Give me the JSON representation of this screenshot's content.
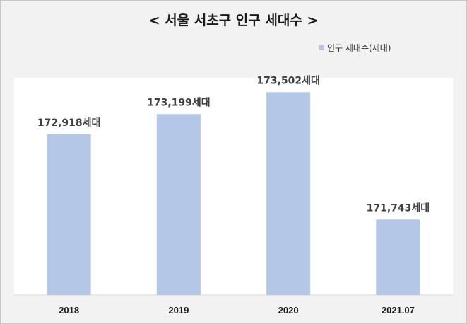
{
  "chart_data": {
    "type": "bar",
    "title": "< 서울 서초구 인구 세대수 >",
    "categories": [
      "2018",
      "2019",
      "2020",
      "2021.07"
    ],
    "series": [
      {
        "name": "인구 세대수(세대)",
        "values": [
          172918,
          173199,
          173502,
          171743
        ],
        "color": "#b4c7e7"
      }
    ],
    "data_labels": [
      "172,918세대",
      "173,199세대",
      "173,502세대",
      "171,743세대"
    ],
    "xlabel": "",
    "ylabel": "",
    "ylim": [
      170700,
      173700
    ],
    "grid": false,
    "legend_position": "top-right"
  },
  "colors": {
    "bar": "#b4c7e7",
    "chart_background": "#f2f2f2",
    "plot_background": "#ffffff"
  }
}
